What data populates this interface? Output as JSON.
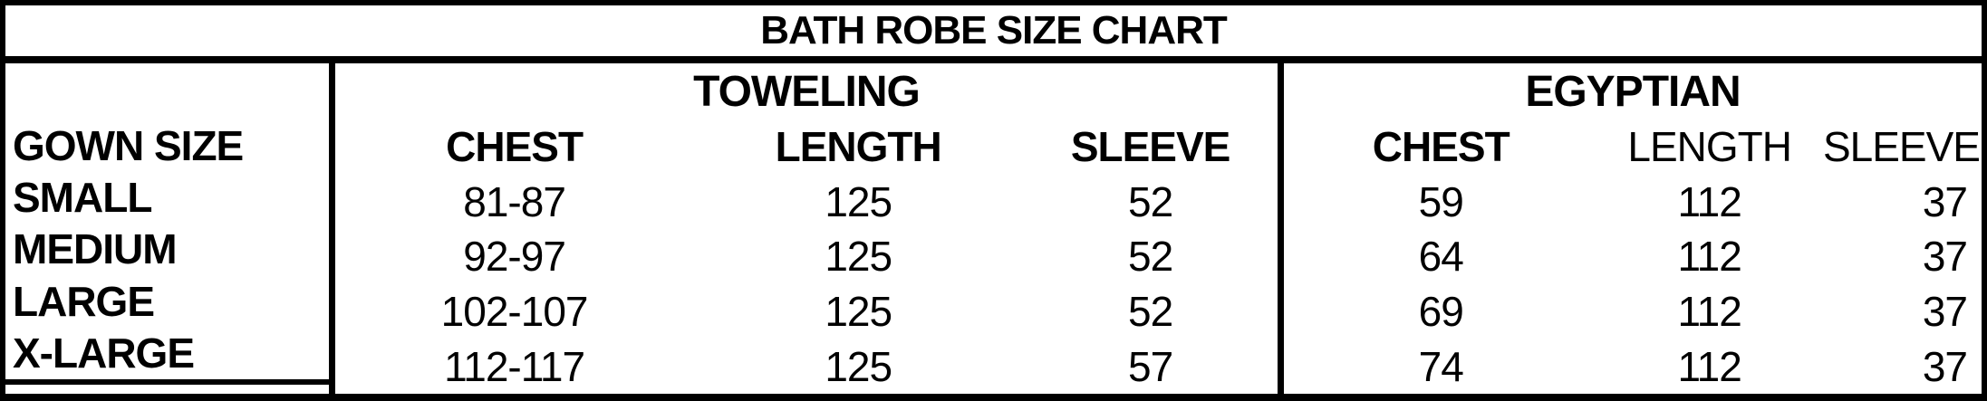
{
  "title": "BATH ROBE SIZE CHART",
  "row_header": "GOWN SIZE",
  "colors": {
    "border": "#000000",
    "text": "#000000",
    "background": "#ffffff"
  },
  "sections": {
    "toweling": {
      "label": "TOWELING",
      "columns": [
        "CHEST",
        "LENGTH",
        "SLEEVE"
      ]
    },
    "egyptian": {
      "label": "EGYPTIAN",
      "columns": [
        "CHEST",
        "LENGTH",
        "SLEEVE"
      ]
    }
  },
  "rows": [
    {
      "size": "SMALL",
      "toweling": {
        "chest": "81-87",
        "length": "125",
        "sleeve": "52"
      },
      "egyptian": {
        "chest": "59",
        "length": "112",
        "sleeve": "37"
      }
    },
    {
      "size": "MEDIUM",
      "toweling": {
        "chest": "92-97",
        "length": "125",
        "sleeve": "52"
      },
      "egyptian": {
        "chest": "64",
        "length": "112",
        "sleeve": "37"
      }
    },
    {
      "size": "LARGE",
      "toweling": {
        "chest": "102-107",
        "length": "125",
        "sleeve": "52"
      },
      "egyptian": {
        "chest": "69",
        "length": "112",
        "sleeve": "37"
      }
    },
    {
      "size": "X-LARGE",
      "toweling": {
        "chest": "112-117",
        "length": "125",
        "sleeve": "57"
      },
      "egyptian": {
        "chest": "74",
        "length": "112",
        "sleeve": "37"
      }
    }
  ],
  "chart_data": {
    "type": "table",
    "title": "BATH ROBE SIZE CHART",
    "column_groups": [
      "",
      "TOWELING",
      "TOWELING",
      "TOWELING",
      "EGYPTIAN",
      "EGYPTIAN",
      "EGYPTIAN"
    ],
    "columns": [
      "GOWN SIZE",
      "CHEST",
      "LENGTH",
      "SLEEVE",
      "CHEST",
      "LENGTH",
      "SLEEVE"
    ],
    "rows": [
      [
        "SMALL",
        "81-87",
        125,
        52,
        59,
        112,
        37
      ],
      [
        "MEDIUM",
        "92-97",
        125,
        52,
        64,
        112,
        37
      ],
      [
        "LARGE",
        "102-107",
        125,
        52,
        69,
        112,
        37
      ],
      [
        "X-LARGE",
        "112-117",
        125,
        57,
        74,
        112,
        37
      ]
    ]
  }
}
